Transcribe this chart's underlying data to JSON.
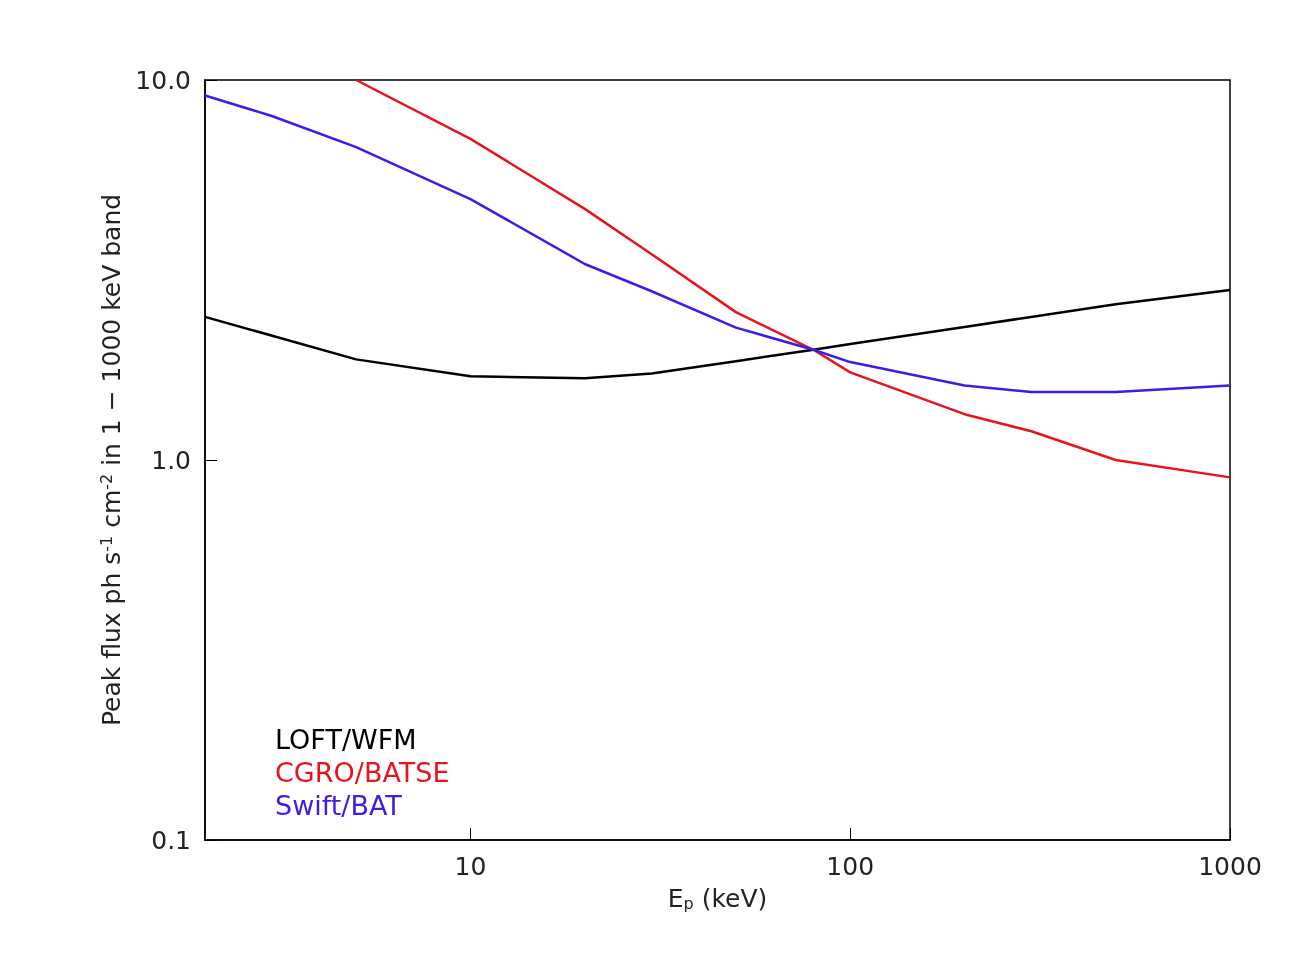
{
  "chart_data": {
    "type": "line",
    "xlabel": "E$_{p}$ (keV)",
    "ylabel": "Peak flux ph s$^{-1}$ cm$^{-2}$ in 1 − 1000 keV band",
    "log": "xy",
    "xlim": [
      2,
      1000
    ],
    "ylim": [
      0.1,
      10
    ],
    "xticks": [
      10,
      100,
      1000
    ],
    "yticks": [
      0.1,
      {
        "value": 1,
        "label": "1.0"
      },
      {
        "value": 10,
        "label": "10.0"
      }
    ],
    "grid": false,
    "legend": "bottom left",
    "marker": "none",
    "line_style": "solid",
    "series": [
      {
        "name": "LOFT/WFM",
        "color": "#000000",
        "x": [
          2,
          5,
          10,
          20,
          30,
          50,
          80,
          100,
          200,
          500,
          1000
        ],
        "values": [
          2.38,
          1.84,
          1.66,
          1.64,
          1.69,
          1.82,
          1.95,
          2.02,
          2.24,
          2.57,
          2.8
        ]
      },
      {
        "name": "CGRO/BATSE",
        "color": "#e8141c",
        "x": [
          5,
          10,
          20,
          30,
          50,
          80,
          100,
          200,
          300,
          500,
          1000
        ],
        "values": [
          10,
          7.0,
          4.58,
          3.48,
          2.45,
          1.95,
          1.7,
          1.32,
          1.19,
          1.0,
          0.9
        ]
      },
      {
        "name": "Swift/BAT",
        "color": "#3a1ee8",
        "x": [
          2,
          3,
          5,
          10,
          20,
          30,
          50,
          80,
          100,
          200,
          300,
          500,
          1000
        ],
        "values": [
          9.1,
          8.04,
          6.66,
          4.86,
          3.28,
          2.78,
          2.23,
          1.95,
          1.81,
          1.57,
          1.51,
          1.51,
          1.57
        ]
      }
    ]
  }
}
